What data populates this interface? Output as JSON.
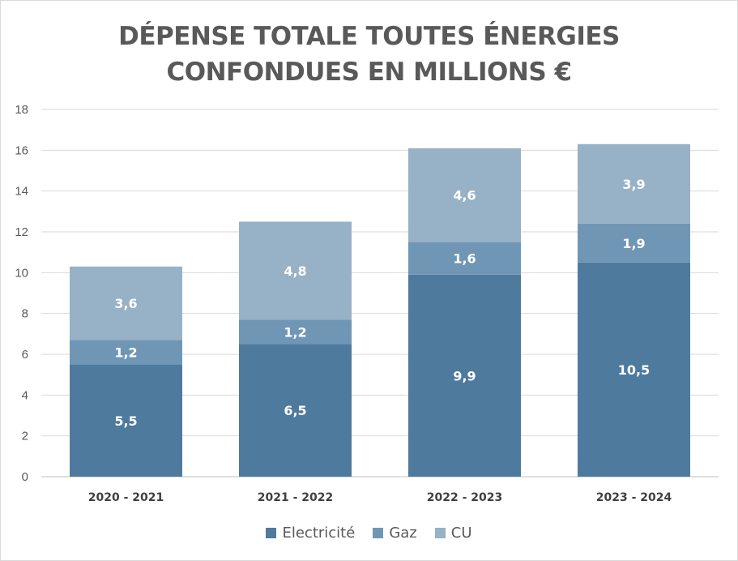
{
  "chart_data": {
    "type": "bar",
    "stacked": true,
    "title_lines": [
      "DÉPENSE TOTALE TOUTES ÉNERGIES",
      "CONFONDUES EN MILLIONS €"
    ],
    "categories": [
      "2020 - 2021",
      "2021 - 2022",
      "2022 - 2023",
      "2023 - 2024"
    ],
    "series": [
      {
        "name": "Electricité",
        "color": "#4e7a9e",
        "values": [
          5.5,
          6.5,
          9.9,
          10.5
        ],
        "labels": [
          "5,5",
          "6,5",
          "9,9",
          "10,5"
        ]
      },
      {
        "name": "Gaz",
        "color": "#7096b5",
        "values": [
          1.2,
          1.2,
          1.6,
          1.9
        ],
        "labels": [
          "1,2",
          "1,2",
          "1,6",
          "1,9"
        ]
      },
      {
        "name": "CU",
        "color": "#97b1c7",
        "values": [
          3.6,
          4.8,
          4.6,
          3.9
        ],
        "labels": [
          "3,6",
          "4,8",
          "4,6",
          "3,9"
        ]
      }
    ],
    "ylim": [
      0,
      18
    ],
    "yticks": [
      0,
      2,
      4,
      6,
      8,
      10,
      12,
      14,
      16,
      18
    ],
    "grid": true,
    "legend_position": "bottom",
    "xlabel": "",
    "ylabel": ""
  }
}
